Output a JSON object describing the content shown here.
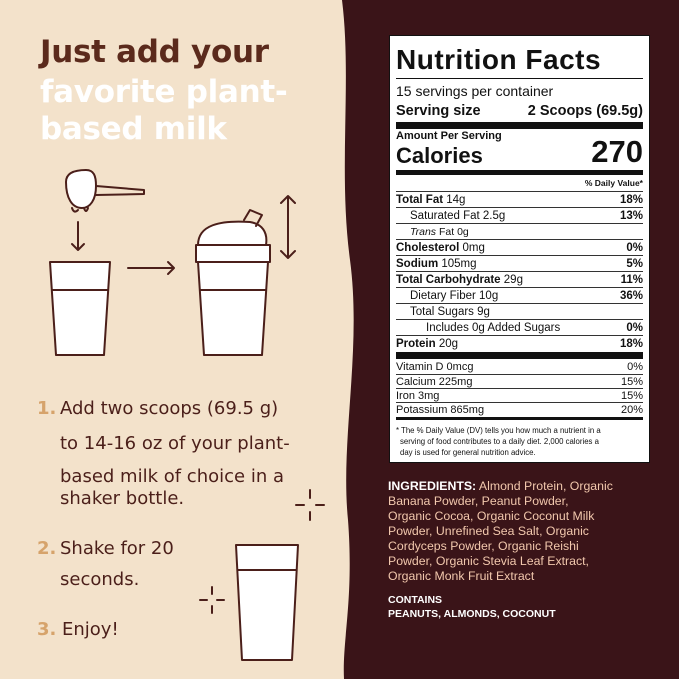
{
  "headline": [
    "Just add your",
    "favorite plant-",
    "based milk"
  ],
  "steps": [
    {
      "number": "1.",
      "lines": [
        "Add two scoops (69.5 g)",
        "to 14-16 oz of your plant-",
        "based milk of choice in a",
        "shaker bottle."
      ]
    },
    {
      "number": "2.",
      "lines": [
        "Shake for 20",
        "seconds."
      ]
    },
    {
      "number": "3.",
      "lines": [
        "Enjoy!"
      ]
    }
  ],
  "nutrition": {
    "title": "Nutrition Facts",
    "servings": "15 servings per container",
    "serving_size": {
      "label": "Serving size",
      "value": "2 Scoops (69.5g)"
    },
    "amount_per_serving": "Amount Per Serving",
    "calories": {
      "label": "Calories",
      "value": "270"
    },
    "dv_header": "% Daily Value*",
    "rows": [
      {
        "label": "Total Fat",
        "amount": "14g",
        "dv": "18%"
      },
      {
        "label": "Saturated Fat",
        "amount": "2.5g",
        "dv": "13%"
      },
      {
        "italic": "Trans",
        "label": "Fat",
        "amount": "0g"
      },
      {
        "label": "Cholesterol",
        "amount": "0mg",
        "dv": "0%"
      },
      {
        "label": "Sodium",
        "amount": "105mg",
        "dv": "5%"
      },
      {
        "label": "Total Carbohydrate",
        "amount": "29g",
        "dv": "11%"
      },
      {
        "label": "Dietary Fiber",
        "amount": "10g",
        "dv": "36%"
      },
      {
        "label": "Total Sugars",
        "amount": "9g"
      },
      {
        "label": "Includes 0g Added Sugars",
        "dv": "0%"
      },
      {
        "label": "Protein",
        "amount": "20g",
        "dv": "18%"
      }
    ],
    "vitamins": [
      {
        "label": "Vitamin D",
        "amount": "0mcg",
        "dv": "0%"
      },
      {
        "label": "Calcium",
        "amount": "225mg",
        "dv": "15%"
      },
      {
        "label": "Iron",
        "amount": "3mg",
        "dv": "15%"
      },
      {
        "label": "Potassium",
        "amount": "865mg",
        "dv": "20%"
      }
    ],
    "footnote": [
      "* The % Daily Value (DV) tells you how much a nutrient in a",
      "serving of food contributes to a daily diet. 2,000 calories a",
      "day is used for general nutrition advice."
    ]
  },
  "ingredients": {
    "label": "INGREDIENTS:",
    "lines": [
      "Almond Protein, Organic",
      "Banana Powder, Peanut Powder,",
      "Organic Cocoa, Organic Coconut Milk",
      "Powder, Unrefined Sea Salt, Organic",
      "Cordyceps Powder, Organic Reishi",
      "Powder, Organic Stevia Leaf Extract,",
      "Organic Monk Fruit Extract"
    ]
  },
  "contains": {
    "label": "CONTAINS",
    "text": "PEANUTS, ALMONDS, COCONUT"
  }
}
